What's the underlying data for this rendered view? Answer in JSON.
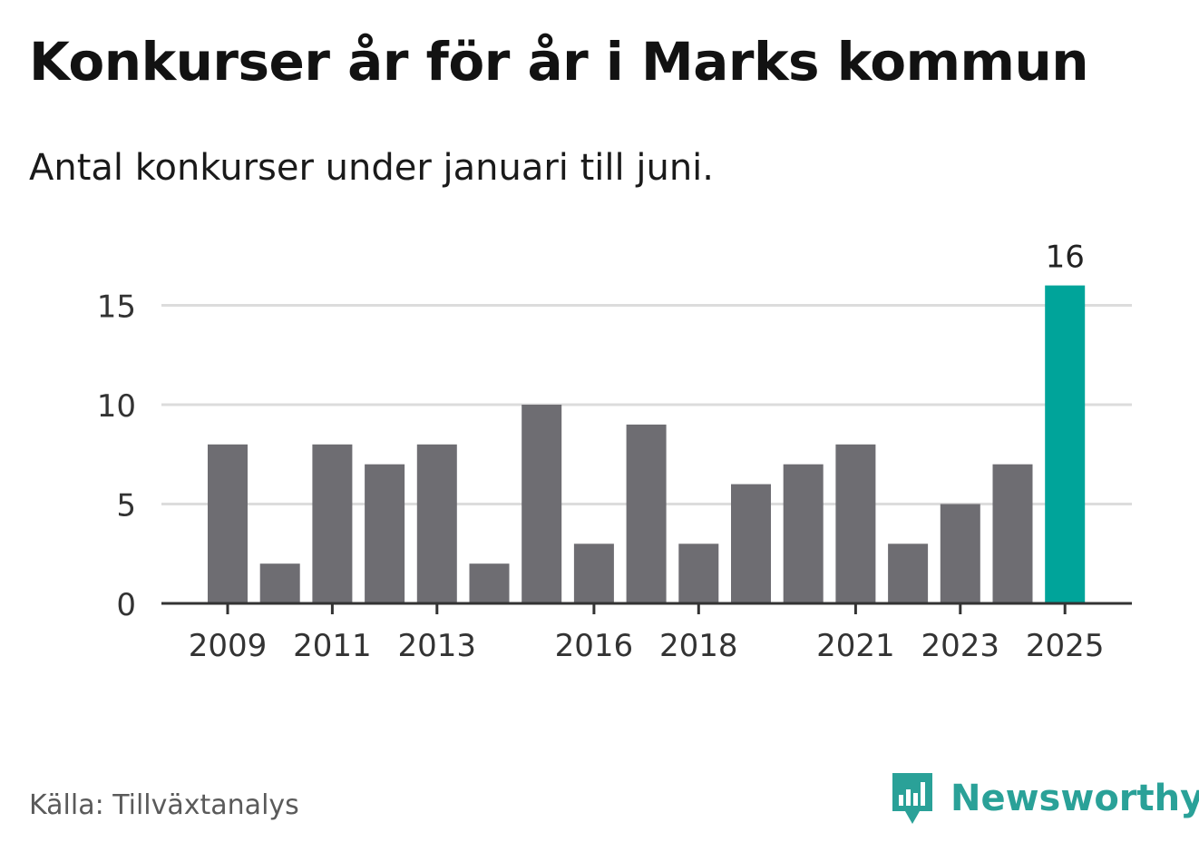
{
  "header": {
    "title": "Konkurser år för år i Marks kommun",
    "subtitle": "Antal konkurser under januari till juni."
  },
  "footer": {
    "source": "Källa: Tillväxtanalys",
    "brand": "Newsworthy",
    "brand_icon": "bar-chart-speech-bubble-icon"
  },
  "colors": {
    "bar": "#6e6d72",
    "highlight": "#00a49a",
    "grid": "#dcdcdc",
    "axis": "#333333",
    "brand": "#2aa198"
  },
  "chart_data": {
    "type": "bar",
    "title": "Konkurser år för år i Marks kommun",
    "subtitle": "Antal konkurser under januari till juni.",
    "categories": [
      "2009",
      "2010",
      "2011",
      "2012",
      "2013",
      "2014",
      "2015",
      "2016",
      "2017",
      "2018",
      "2019",
      "2020",
      "2021",
      "2022",
      "2023",
      "2024",
      "2025"
    ],
    "values": [
      8,
      2,
      8,
      7,
      8,
      2,
      10,
      3,
      9,
      3,
      6,
      7,
      8,
      3,
      5,
      7,
      16
    ],
    "xtick_labels": [
      "2009",
      "2011",
      "2013",
      "2016",
      "2018",
      "2021",
      "2023",
      "2025"
    ],
    "yticks": [
      0,
      5,
      10,
      15
    ],
    "ylim": [
      0,
      16
    ],
    "highlight_category": "2025",
    "data_labels": [
      {
        "category": "2025",
        "label": "16"
      }
    ],
    "grid": true,
    "legend": false
  }
}
